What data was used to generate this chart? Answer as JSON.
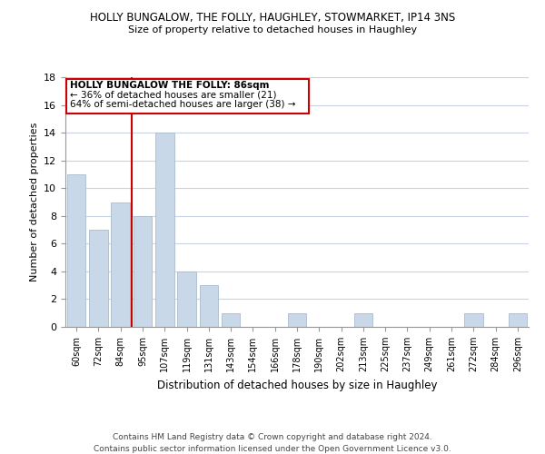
{
  "title": "HOLLY BUNGALOW, THE FOLLY, HAUGHLEY, STOWMARKET, IP14 3NS",
  "subtitle": "Size of property relative to detached houses in Haughley",
  "xlabel": "Distribution of detached houses by size in Haughley",
  "ylabel": "Number of detached properties",
  "bar_color": "#c8d8e8",
  "bar_edge_color": "#aabccc",
  "categories": [
    "60sqm",
    "72sqm",
    "84sqm",
    "95sqm",
    "107sqm",
    "119sqm",
    "131sqm",
    "143sqm",
    "154sqm",
    "166sqm",
    "178sqm",
    "190sqm",
    "202sqm",
    "213sqm",
    "225sqm",
    "237sqm",
    "249sqm",
    "261sqm",
    "272sqm",
    "284sqm",
    "296sqm"
  ],
  "values": [
    11,
    7,
    9,
    8,
    14,
    4,
    3,
    1,
    0,
    0,
    1,
    0,
    0,
    1,
    0,
    0,
    0,
    0,
    1,
    0,
    1
  ],
  "ylim": [
    0,
    18
  ],
  "yticks": [
    0,
    2,
    4,
    6,
    8,
    10,
    12,
    14,
    16,
    18
  ],
  "vline_index": 2,
  "vline_color": "#cc0000",
  "annotation_title": "HOLLY BUNGALOW THE FOLLY: 86sqm",
  "annotation_line1": "← 36% of detached houses are smaller (21)",
  "annotation_line2": "64% of semi-detached houses are larger (38) →",
  "annotation_box_color": "#cc0000",
  "footer_line1": "Contains HM Land Registry data © Crown copyright and database right 2024.",
  "footer_line2": "Contains public sector information licensed under the Open Government Licence v3.0.",
  "background_color": "#ffffff",
  "grid_color": "#c8d4e4"
}
